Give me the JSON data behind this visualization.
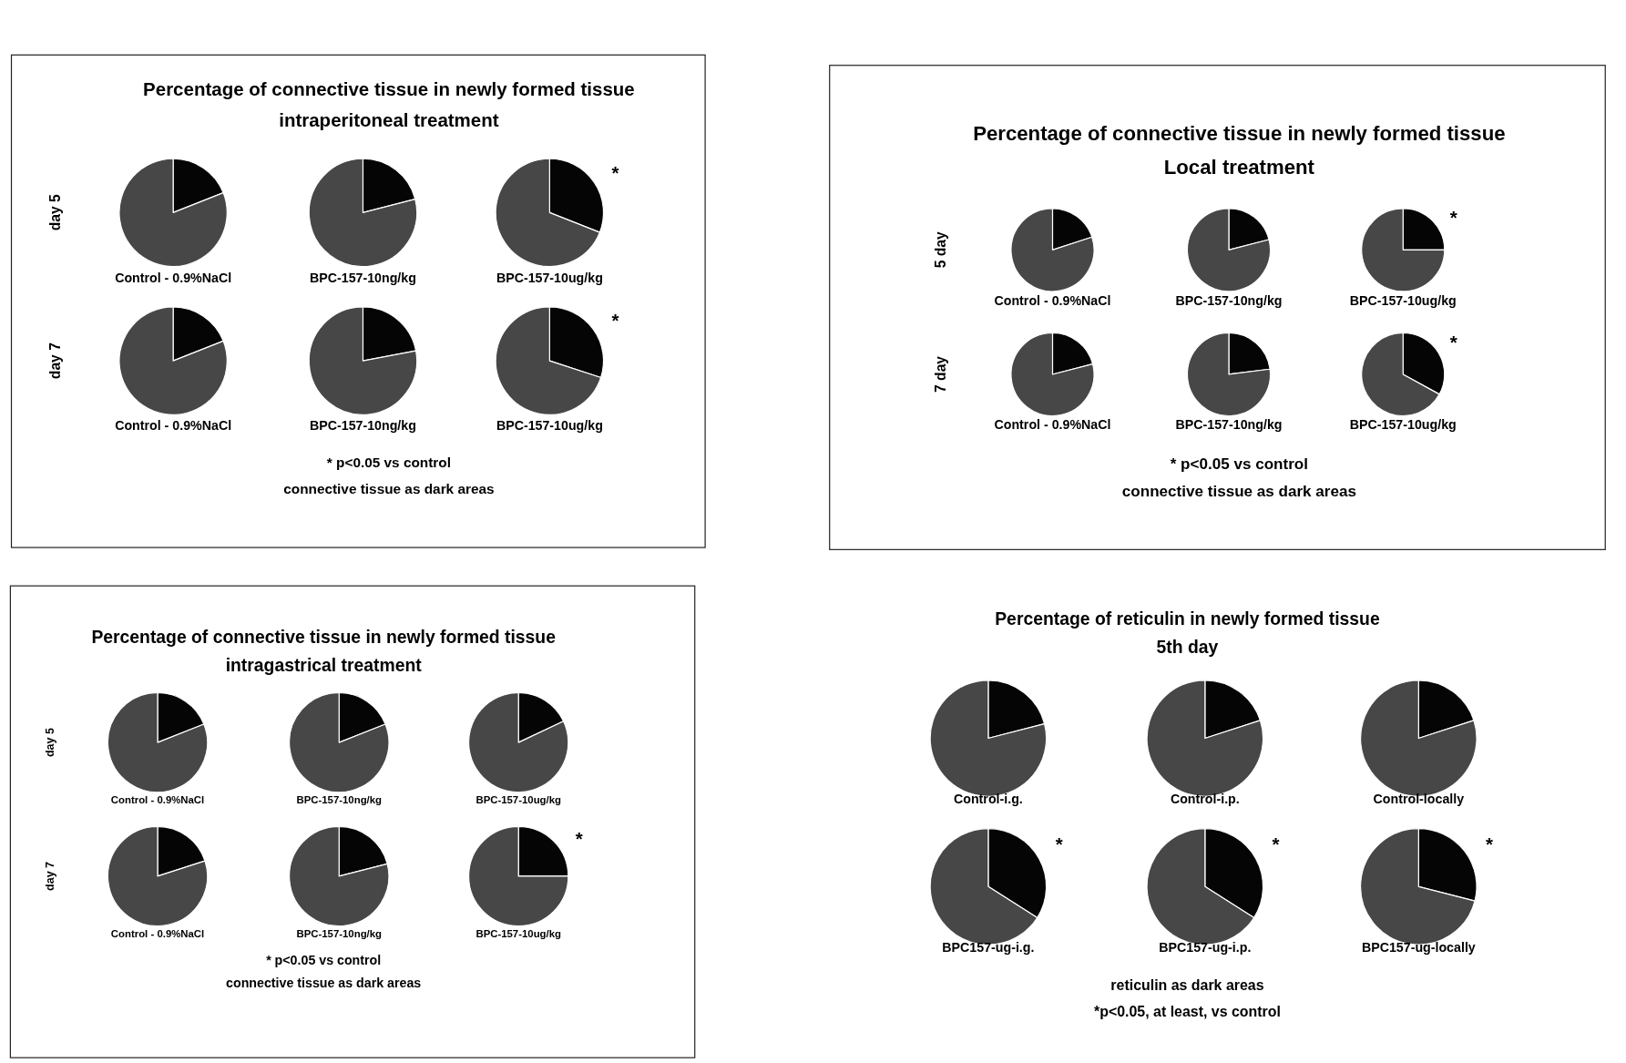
{
  "chart_data": [
    {
      "type": "other",
      "title": "Percentage of connective tissue in newly formed tissue",
      "subtitle": "intraperitoneal treatment",
      "annotations": [
        "day 5",
        "day 7",
        "* p<0.05  vs control",
        "connective tissue as dark areas"
      ]
    },
    {
      "type": "pie",
      "title": "Control - 0.9%NaCl",
      "categories": [
        null,
        null
      ],
      "values": [
        19,
        81
      ],
      "colors": [
        "#050505",
        "#474747"
      ]
    },
    {
      "type": "pie",
      "title": "BPC-157-10ng/kg",
      "categories": [
        null,
        null
      ],
      "values": [
        21,
        79
      ],
      "colors": [
        "#050505",
        "#474747"
      ]
    },
    {
      "type": "pie",
      "title": "BPC-157-10ug/kg",
      "categories": [
        null,
        null
      ],
      "values": [
        31,
        69
      ],
      "colors": [
        "#050505",
        "#474747"
      ],
      "annotations": [
        "*"
      ]
    },
    {
      "type": "pie",
      "title": "Control - 0.9%NaCl",
      "categories": [
        null,
        null
      ],
      "values": [
        19,
        81
      ],
      "colors": [
        "#050505",
        "#474747"
      ]
    },
    {
      "type": "pie",
      "title": "BPC-157-10ng/kg",
      "categories": [
        null,
        null
      ],
      "values": [
        22,
        78
      ],
      "colors": [
        "#050505",
        "#474747"
      ]
    },
    {
      "type": "pie",
      "title": "BPC-157-10ug/kg",
      "categories": [
        null,
        null
      ],
      "values": [
        30,
        70
      ],
      "colors": [
        "#050505",
        "#474747"
      ],
      "annotations": [
        "*"
      ]
    },
    {
      "type": "other",
      "title": "Percentage of connective tissue in newly formed tissue",
      "subtitle": "Local treatment",
      "annotations": [
        "5 day",
        "7 day",
        "* p<0.05 vs control",
        "connective tissue as dark areas"
      ]
    },
    {
      "type": "pie",
      "title": "Control - 0.9%NaCl",
      "categories": [
        null,
        null
      ],
      "values": [
        20,
        80
      ],
      "colors": [
        "#050505",
        "#474747"
      ]
    },
    {
      "type": "pie",
      "title": "BPC-157-10ng/kg",
      "categories": [
        null,
        null
      ],
      "values": [
        21,
        79
      ],
      "colors": [
        "#050505",
        "#474747"
      ]
    },
    {
      "type": "pie",
      "title": "BPC-157-10ug/kg",
      "categories": [
        null,
        null
      ],
      "values": [
        25,
        75
      ],
      "colors": [
        "#050505",
        "#474747"
      ],
      "annotations": [
        "*"
      ]
    },
    {
      "type": "pie",
      "title": "Control - 0.9%NaCl",
      "categories": [
        null,
        null
      ],
      "values": [
        21,
        79
      ],
      "colors": [
        "#050505",
        "#474747"
      ]
    },
    {
      "type": "pie",
      "title": "BPC-157-10ng/kg",
      "categories": [
        null,
        null
      ],
      "values": [
        23,
        77
      ],
      "colors": [
        "#050505",
        "#474747"
      ]
    },
    {
      "type": "pie",
      "title": "BPC-157-10ug/kg",
      "categories": [
        null,
        null
      ],
      "values": [
        33,
        67
      ],
      "colors": [
        "#050505",
        "#474747"
      ],
      "annotations": [
        "*"
      ]
    },
    {
      "type": "other",
      "title": "Percentage of connective tissue in newly formed tissue",
      "subtitle": "intragastrical treatment",
      "annotations": [
        "day 5",
        "day 7",
        "* p<0.05 vs control",
        "connective tissue as dark areas"
      ]
    },
    {
      "type": "pie",
      "title": "Control - 0.9%NaCl",
      "categories": [
        null,
        null
      ],
      "values": [
        19,
        81
      ],
      "colors": [
        "#050505",
        "#474747"
      ]
    },
    {
      "type": "pie",
      "title": "BPC-157-10ng/kg",
      "categories": [
        null,
        null
      ],
      "values": [
        19,
        81
      ],
      "colors": [
        "#050505",
        "#474747"
      ]
    },
    {
      "type": "pie",
      "title": "BPC-157-10ug/kg",
      "categories": [
        null,
        null
      ],
      "values": [
        18,
        82
      ],
      "colors": [
        "#050505",
        "#474747"
      ]
    },
    {
      "type": "pie",
      "title": "Control - 0.9%NaCl",
      "categories": [
        null,
        null
      ],
      "values": [
        20,
        80
      ],
      "colors": [
        "#050505",
        "#474747"
      ]
    },
    {
      "type": "pie",
      "title": "BPC-157-10ng/kg",
      "categories": [
        null,
        null
      ],
      "values": [
        21,
        79
      ],
      "colors": [
        "#050505",
        "#474747"
      ]
    },
    {
      "type": "pie",
      "title": "BPC-157-10ug/kg",
      "categories": [
        null,
        null
      ],
      "values": [
        25,
        75
      ],
      "colors": [
        "#050505",
        "#474747"
      ],
      "annotations": [
        "*"
      ]
    },
    {
      "type": "other",
      "title": "Percentage of reticulin in newly formed tissue",
      "subtitle": "5th day",
      "annotations": [
        "reticulin as dark areas",
        "*p<0.05, at least, vs control"
      ]
    },
    {
      "type": "pie",
      "title": "Control-i.g.",
      "categories": [
        null,
        null
      ],
      "values": [
        21,
        79
      ],
      "colors": [
        "#050505",
        "#474747"
      ]
    },
    {
      "type": "pie",
      "title": "Control-i.p.",
      "categories": [
        null,
        null
      ],
      "values": [
        20,
        80
      ],
      "colors": [
        "#050505",
        "#474747"
      ]
    },
    {
      "type": "pie",
      "title": "Control-locally",
      "categories": [
        null,
        null
      ],
      "values": [
        20,
        80
      ],
      "colors": [
        "#050505",
        "#474747"
      ]
    },
    {
      "type": "pie",
      "title": "BPC157-ug-i.g.",
      "categories": [
        null,
        null
      ],
      "values": [
        34,
        66
      ],
      "colors": [
        "#050505",
        "#474747"
      ],
      "annotations": [
        "*"
      ]
    },
    {
      "type": "pie",
      "title": "BPC157-ug-i.p.",
      "categories": [
        null,
        null
      ],
      "values": [
        34,
        66
      ],
      "colors": [
        "#050505",
        "#474747"
      ],
      "annotations": [
        "*"
      ]
    },
    {
      "type": "pie",
      "title": "BPC157-ug-locally",
      "categories": [
        null,
        null
      ],
      "values": [
        29,
        71
      ],
      "colors": [
        "#050505",
        "#474747"
      ],
      "annotations": [
        "*"
      ]
    }
  ]
}
